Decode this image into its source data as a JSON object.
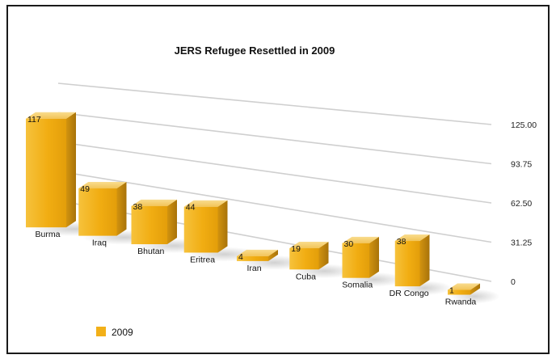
{
  "chart_data": {
    "type": "bar",
    "title": "JERS Refugee Resettled in 2009",
    "categories": [
      "Burma",
      "Iraq",
      "Bhutan",
      "Eritrea",
      "Iran",
      "Cuba",
      "Somalia",
      "DR Congo",
      "Rwanda"
    ],
    "series": [
      {
        "name": "2009",
        "values": [
          117,
          49,
          38,
          44,
          4,
          19,
          30,
          38,
          1
        ]
      }
    ],
    "y_ticks": [
      "0",
      "31.25",
      "62.50",
      "93.75",
      "125.00"
    ],
    "ylim": [
      0,
      125
    ],
    "grid": true,
    "legend": "bottom-left",
    "style": "3d-perspective",
    "colors": {
      "bar_front": "#f2b019",
      "bar_top": "#f7d277",
      "bar_side": "#c98a0c",
      "legend": "#f2b019"
    }
  }
}
